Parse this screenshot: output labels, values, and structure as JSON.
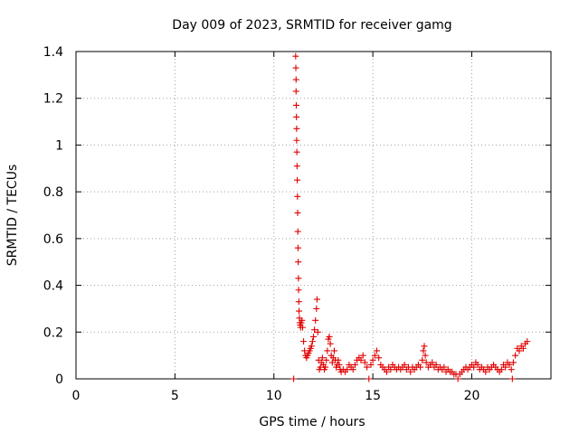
{
  "chart_data": {
    "type": "scatter",
    "title": "Day 009 of 2023, SRMTID for receiver gamg",
    "xlabel": "GPS time / hours",
    "ylabel": "SRMTID / TECUs",
    "xlim": [
      0,
      24
    ],
    "ylim": [
      0,
      1.4
    ],
    "xticks": [
      0,
      5,
      10,
      15,
      20
    ],
    "yticks": [
      0,
      0.2,
      0.4,
      0.6,
      0.8,
      1,
      1.2,
      1.4
    ],
    "xtick_labels": [
      "0",
      "5",
      "10",
      "15",
      "20"
    ],
    "ytick_labels": [
      "0",
      "0.2",
      "0.4",
      "0.6",
      "0.8",
      "1",
      "1.2",
      "1.4"
    ],
    "grid": true,
    "marker": "+",
    "series": [
      {
        "name": "gamg",
        "color": "#e00000",
        "points": [
          [
            11.0,
            0.0
          ],
          [
            11.1,
            1.38
          ],
          [
            11.11,
            1.33
          ],
          [
            11.12,
            1.28
          ],
          [
            11.12,
            1.23
          ],
          [
            11.13,
            1.17
          ],
          [
            11.14,
            1.12
          ],
          [
            11.15,
            1.07
          ],
          [
            11.15,
            1.02
          ],
          [
            11.16,
            0.97
          ],
          [
            11.17,
            0.91
          ],
          [
            11.18,
            0.85
          ],
          [
            11.19,
            0.78
          ],
          [
            11.2,
            0.71
          ],
          [
            11.21,
            0.63
          ],
          [
            11.22,
            0.56
          ],
          [
            11.23,
            0.5
          ],
          [
            11.24,
            0.43
          ],
          [
            11.25,
            0.38
          ],
          [
            11.26,
            0.33
          ],
          [
            11.27,
            0.29
          ],
          [
            11.29,
            0.26
          ],
          [
            11.31,
            0.24
          ],
          [
            11.33,
            0.23
          ],
          [
            11.35,
            0.22
          ],
          [
            11.38,
            0.24
          ],
          [
            11.42,
            0.25
          ],
          [
            11.45,
            0.22
          ],
          [
            11.5,
            0.16
          ],
          [
            11.55,
            0.12
          ],
          [
            11.6,
            0.1
          ],
          [
            11.65,
            0.09
          ],
          [
            11.7,
            0.1
          ],
          [
            11.75,
            0.11
          ],
          [
            11.8,
            0.12
          ],
          [
            11.85,
            0.13
          ],
          [
            11.9,
            0.14
          ],
          [
            11.95,
            0.16
          ],
          [
            12.0,
            0.18
          ],
          [
            12.05,
            0.21
          ],
          [
            12.1,
            0.25
          ],
          [
            12.15,
            0.3
          ],
          [
            12.18,
            0.34
          ],
          [
            12.22,
            0.2
          ],
          [
            12.26,
            0.08
          ],
          [
            12.3,
            0.04
          ],
          [
            12.35,
            0.05
          ],
          [
            12.4,
            0.07
          ],
          [
            12.45,
            0.09
          ],
          [
            12.5,
            0.06
          ],
          [
            12.55,
            0.04
          ],
          [
            12.6,
            0.05
          ],
          [
            12.65,
            0.08
          ],
          [
            12.7,
            0.12
          ],
          [
            12.75,
            0.17
          ],
          [
            12.8,
            0.18
          ],
          [
            12.85,
            0.15
          ],
          [
            12.9,
            0.1
          ],
          [
            12.95,
            0.07
          ],
          [
            13.0,
            0.09
          ],
          [
            13.05,
            0.12
          ],
          [
            13.1,
            0.08
          ],
          [
            13.15,
            0.05
          ],
          [
            13.2,
            0.06
          ],
          [
            13.25,
            0.08
          ],
          [
            13.3,
            0.06
          ],
          [
            13.35,
            0.04
          ],
          [
            13.4,
            0.03
          ],
          [
            13.5,
            0.04
          ],
          [
            13.6,
            0.03
          ],
          [
            13.7,
            0.04
          ],
          [
            13.8,
            0.06
          ],
          [
            13.9,
            0.05
          ],
          [
            14.0,
            0.04
          ],
          [
            14.1,
            0.06
          ],
          [
            14.2,
            0.08
          ],
          [
            14.3,
            0.09
          ],
          [
            14.4,
            0.08
          ],
          [
            14.5,
            0.1
          ],
          [
            14.6,
            0.07
          ],
          [
            14.7,
            0.05
          ],
          [
            14.8,
            0.0
          ],
          [
            14.9,
            0.06
          ],
          [
            15.0,
            0.08
          ],
          [
            15.1,
            0.1
          ],
          [
            15.2,
            0.12
          ],
          [
            15.3,
            0.09
          ],
          [
            15.4,
            0.06
          ],
          [
            15.5,
            0.05
          ],
          [
            15.6,
            0.04
          ],
          [
            15.7,
            0.03
          ],
          [
            15.8,
            0.05
          ],
          [
            15.9,
            0.04
          ],
          [
            16.0,
            0.06
          ],
          [
            16.1,
            0.05
          ],
          [
            16.2,
            0.04
          ],
          [
            16.3,
            0.05
          ],
          [
            16.4,
            0.04
          ],
          [
            16.5,
            0.05
          ],
          [
            16.6,
            0.06
          ],
          [
            16.7,
            0.04
          ],
          [
            16.8,
            0.05
          ],
          [
            16.9,
            0.03
          ],
          [
            17.0,
            0.05
          ],
          [
            17.1,
            0.04
          ],
          [
            17.2,
            0.05
          ],
          [
            17.3,
            0.06
          ],
          [
            17.4,
            0.05
          ],
          [
            17.5,
            0.08
          ],
          [
            17.55,
            0.12
          ],
          [
            17.6,
            0.14
          ],
          [
            17.65,
            0.1
          ],
          [
            17.7,
            0.07
          ],
          [
            17.8,
            0.05
          ],
          [
            17.9,
            0.06
          ],
          [
            18.0,
            0.07
          ],
          [
            18.1,
            0.05
          ],
          [
            18.2,
            0.06
          ],
          [
            18.3,
            0.04
          ],
          [
            18.4,
            0.05
          ],
          [
            18.5,
            0.04
          ],
          [
            18.6,
            0.05
          ],
          [
            18.7,
            0.03
          ],
          [
            18.8,
            0.04
          ],
          [
            18.9,
            0.03
          ],
          [
            19.0,
            0.03
          ],
          [
            19.1,
            0.02
          ],
          [
            19.2,
            0.02
          ],
          [
            19.3,
            0.0
          ],
          [
            19.4,
            0.02
          ],
          [
            19.5,
            0.03
          ],
          [
            19.6,
            0.04
          ],
          [
            19.7,
            0.05
          ],
          [
            19.8,
            0.04
          ],
          [
            19.9,
            0.05
          ],
          [
            20.0,
            0.06
          ],
          [
            20.1,
            0.05
          ],
          [
            20.2,
            0.07
          ],
          [
            20.3,
            0.06
          ],
          [
            20.4,
            0.04
          ],
          [
            20.5,
            0.05
          ],
          [
            20.6,
            0.04
          ],
          [
            20.7,
            0.03
          ],
          [
            20.8,
            0.05
          ],
          [
            20.9,
            0.04
          ],
          [
            21.0,
            0.05
          ],
          [
            21.1,
            0.06
          ],
          [
            21.2,
            0.05
          ],
          [
            21.3,
            0.04
          ],
          [
            21.4,
            0.03
          ],
          [
            21.5,
            0.04
          ],
          [
            21.6,
            0.06
          ],
          [
            21.7,
            0.05
          ],
          [
            21.8,
            0.07
          ],
          [
            21.9,
            0.06
          ],
          [
            22.0,
            0.04
          ],
          [
            22.05,
            0.0
          ],
          [
            22.1,
            0.07
          ],
          [
            22.2,
            0.1
          ],
          [
            22.3,
            0.13
          ],
          [
            22.4,
            0.12
          ],
          [
            22.5,
            0.14
          ],
          [
            22.6,
            0.13
          ],
          [
            22.7,
            0.15
          ],
          [
            22.8,
            0.16
          ]
        ]
      }
    ]
  }
}
